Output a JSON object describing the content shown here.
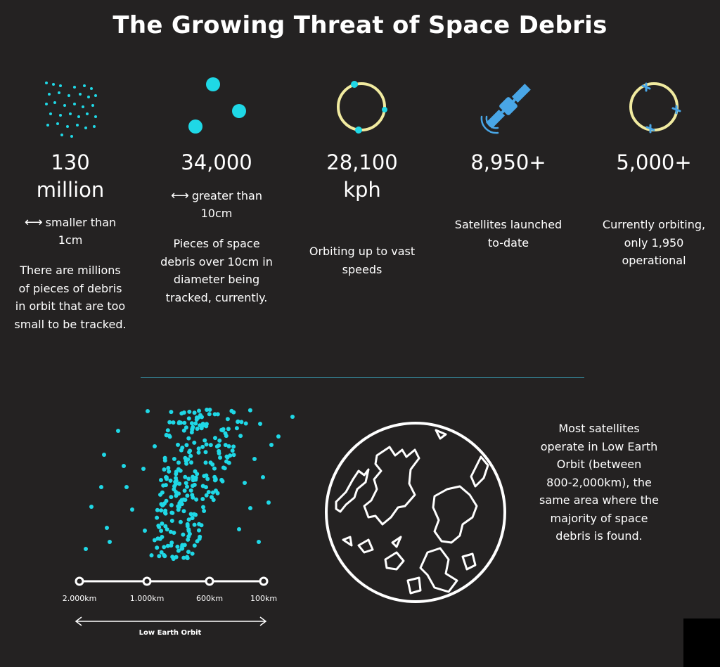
{
  "title": "The Growing Threat of Space Debris",
  "colors": {
    "background": "#242222",
    "cyan": "#1fd8e6",
    "yellow": "#f1eba0",
    "blue": "#49a6e6",
    "divider": "#3aa0b8"
  },
  "stats": [
    {
      "icon": "scattered-dots-icon",
      "number_line1": "130",
      "number_line2": "million",
      "size_label": "smaller than 1cm",
      "size_line1": "smaller than",
      "size_line2": "1cm",
      "desc_lines": [
        "There are millions",
        "of pieces of debris",
        "in orbit that are too",
        "small to be tracked."
      ]
    },
    {
      "icon": "large-dots-icon",
      "number_line1": "34,000",
      "size_line1": "greater than",
      "size_line2": "10cm",
      "desc_lines": [
        "Pieces of space",
        "debris over 10cm in",
        "diameter being",
        "tracked, currently."
      ]
    },
    {
      "icon": "orbit-ring-icon",
      "number_line1": "28,100",
      "number_line2": "kph",
      "desc_lines": [
        "Orbiting up to vast",
        "speeds"
      ]
    },
    {
      "icon": "satellite-icon",
      "number_line1": "8,950+",
      "desc_lines": [
        "Satellites launched",
        "to-date"
      ]
    },
    {
      "icon": "orbiting-satellites-icon",
      "number_line1": "5,000+",
      "desc_lines": [
        "Currently orbiting,",
        "only 1,950",
        "operational"
      ]
    }
  ],
  "orbit_scale": {
    "ticks": [
      "2.000km",
      "1.000km",
      "600km",
      "100km"
    ],
    "range_label": "Low Earth Orbit"
  },
  "orbit_text_lines": [
    "Most satellites",
    "operate in Low Earth",
    "Orbit (between",
    "800-2,000km), the",
    "same area where the",
    "majority of space",
    "debris is found."
  ]
}
